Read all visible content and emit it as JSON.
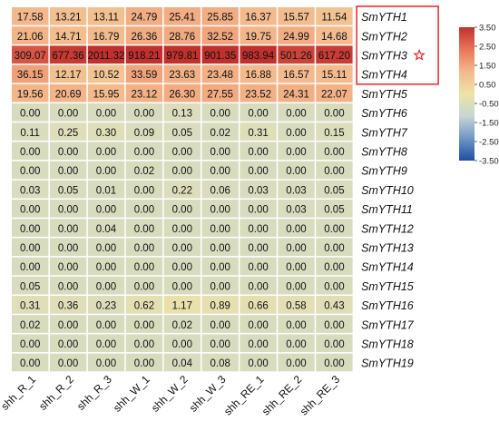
{
  "chart_data": {
    "type": "heatmap",
    "columns": [
      "shh_R_1",
      "shh_R_2",
      "shh_R_3",
      "shh_W_1",
      "shh_W_2",
      "shh_W_3",
      "shh_RE_1",
      "shh_RE_2",
      "shh_RE_3"
    ],
    "rows": [
      "SmYTH1",
      "SmYTH2",
      "SmYTH3",
      "SmYTH4",
      "SmYTH5",
      "SmYTH6",
      "SmYTH7",
      "SmYTH8",
      "SmYTH9",
      "SmYTH10",
      "SmYTH11",
      "SmYTH12",
      "SmYTH13",
      "SmYTH14",
      "SmYTH15",
      "SmYTH16",
      "SmYTH17",
      "SmYTH18",
      "SmYTH19"
    ],
    "values": [
      [
        "17.58",
        "13.21",
        "13.11",
        "24.79",
        "25.41",
        "25.85",
        "16.37",
        "15.57",
        "11.54"
      ],
      [
        "21.06",
        "14.71",
        "16.79",
        "26.36",
        "28.76",
        "32.52",
        "19.75",
        "24.99",
        "14.68"
      ],
      [
        "309.07",
        "677.36",
        "2011.32",
        "918.21",
        "979.81",
        "901.35",
        "983.94",
        "501.26",
        "617.20"
      ],
      [
        "36.15",
        "12.17",
        "10.52",
        "33.59",
        "23.63",
        "23.48",
        "16.88",
        "16.57",
        "15.11"
      ],
      [
        "19.56",
        "20.69",
        "15.95",
        "23.12",
        "26.30",
        "27.55",
        "23.52",
        "24.31",
        "22.07"
      ],
      [
        "0.00",
        "0.00",
        "0.00",
        "0.00",
        "0.13",
        "0.00",
        "0.00",
        "0.00",
        "0.00"
      ],
      [
        "0.11",
        "0.25",
        "0.30",
        "0.09",
        "0.05",
        "0.02",
        "0.31",
        "0.00",
        "0.15"
      ],
      [
        "0.00",
        "0.00",
        "0.00",
        "0.00",
        "0.00",
        "0.00",
        "0.00",
        "0.00",
        "0.00"
      ],
      [
        "0.00",
        "0.00",
        "0.00",
        "0.02",
        "0.00",
        "0.00",
        "0.00",
        "0.00",
        "0.00"
      ],
      [
        "0.03",
        "0.05",
        "0.01",
        "0.00",
        "0.22",
        "0.06",
        "0.03",
        "0.03",
        "0.05"
      ],
      [
        "0.00",
        "0.00",
        "0.00",
        "0.00",
        "0.00",
        "0.00",
        "0.00",
        "0.03",
        "0.05"
      ],
      [
        "0.00",
        "0.00",
        "0.04",
        "0.00",
        "0.00",
        "0.00",
        "0.00",
        "0.00",
        "0.00"
      ],
      [
        "0.00",
        "0.00",
        "0.00",
        "0.00",
        "0.00",
        "0.00",
        "0.00",
        "0.00",
        "0.00"
      ],
      [
        "0.00",
        "0.00",
        "0.00",
        "0.00",
        "0.00",
        "0.00",
        "0.00",
        "0.00",
        "0.00"
      ],
      [
        "0.05",
        "0.00",
        "0.00",
        "0.00",
        "0.00",
        "0.00",
        "0.00",
        "0.00",
        "0.00"
      ],
      [
        "0.31",
        "0.36",
        "0.23",
        "0.62",
        "1.17",
        "0.89",
        "0.66",
        "0.58",
        "0.43"
      ],
      [
        "0.02",
        "0.00",
        "0.00",
        "0.00",
        "0.02",
        "0.00",
        "0.00",
        "0.00",
        "0.00"
      ],
      [
        "0.00",
        "0.00",
        "0.00",
        "0.00",
        "0.00",
        "0.00",
        "0.00",
        "0.00",
        "0.00"
      ],
      [
        "0.00",
        "0.00",
        "0.00",
        "0.00",
        "0.04",
        "0.08",
        "0.00",
        "0.00",
        "0.00"
      ]
    ],
    "colorscale": {
      "ticks": [
        "3.50",
        "2.50",
        "1.50",
        "0.50",
        "-0.50",
        "-1.50",
        "-2.50",
        "-3.50"
      ],
      "colors": [
        "#c0312d",
        "#e8765a",
        "#f3b98c",
        "#eee3a6",
        "#c5d6d5",
        "#6f97c4",
        "#1f4fa0"
      ],
      "range": [
        -3.5,
        3.5
      ]
    },
    "highlight": {
      "rows": [
        "SmYTH1",
        "SmYTH2",
        "SmYTH3",
        "SmYTH4"
      ],
      "marker_row": "SmYTH3",
      "color": "#e3262a"
    },
    "grid": true,
    "legend": "top-right"
  }
}
